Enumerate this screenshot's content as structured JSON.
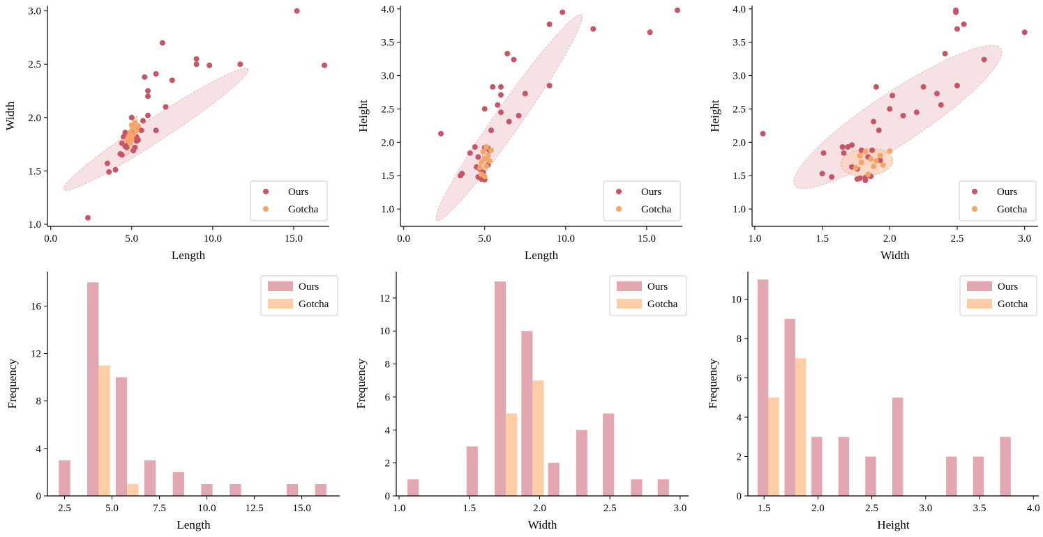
{
  "colors": {
    "ours": "#c85468",
    "gotcha": "#f7a468",
    "ours_bar": "#e3a7b1",
    "gotcha_bar": "#fdcda6",
    "ours_ellipse_fill": "#f5dde1",
    "ours_ellipse_edge": "#eab6bf",
    "gotcha_ellipse_fill": "#f9d1b8",
    "gotcha_ellipse_edge": "#f3a984"
  },
  "legend": {
    "ours": "Ours",
    "gotcha": "Gotcha"
  },
  "chart_data": [
    {
      "id": "scatter-length-width",
      "type": "scatter",
      "xlabel": "Length",
      "ylabel": "Width",
      "xlim": [
        -0.2,
        17.2
      ],
      "ylim": [
        0.98,
        3.05
      ],
      "xticks": [
        0,
        5,
        10,
        15
      ],
      "xtick_labels": [
        "0.0",
        "5.0",
        "10.0",
        "15.0"
      ],
      "yticks": [
        1.0,
        1.5,
        2.0,
        2.5,
        3.0
      ],
      "ytick_labels": [
        "1.0",
        "1.5",
        "2.0",
        "2.5",
        "3.0"
      ],
      "legend_position": "lower-right",
      "ellipses": [
        {
          "series": "ours",
          "cx": 6.5,
          "cy": 1.89,
          "p1": [
            5.7,
            0.56
          ],
          "p2": [
            -0.11,
            0.12
          ]
        },
        {
          "series": "gotcha",
          "cx": 5.0,
          "cy": 1.83,
          "p1": [
            0.35,
            0.17
          ],
          "p2": [
            -0.08,
            0.07
          ]
        }
      ],
      "series": [
        {
          "key": "ours",
          "name": "Ours",
          "points": [
            [
              2.3,
              1.06
            ],
            [
              3.5,
              1.57
            ],
            [
              3.6,
              1.49
            ],
            [
              4.0,
              1.51
            ],
            [
              4.3,
              1.66
            ],
            [
              4.4,
              1.76
            ],
            [
              4.5,
              1.82
            ],
            [
              4.6,
              1.86
            ],
            [
              4.7,
              1.72
            ],
            [
              4.8,
              1.76
            ],
            [
              5.0,
              1.87
            ],
            [
              5.1,
              1.69
            ],
            [
              5.2,
              1.72
            ],
            [
              5.3,
              1.82
            ],
            [
              5.4,
              1.79
            ],
            [
              5.6,
              1.88
            ],
            [
              5.7,
              1.97
            ],
            [
              5.8,
              2.38
            ],
            [
              6.0,
              2.25
            ],
            [
              6.0,
              2.2
            ],
            [
              6.0,
              2.02
            ],
            [
              6.5,
              2.41
            ],
            [
              6.5,
              1.88
            ],
            [
              6.9,
              2.7
            ],
            [
              7.1,
              2.1
            ],
            [
              7.5,
              2.35
            ],
            [
              9.0,
              2.55
            ],
            [
              9.0,
              2.5
            ],
            [
              9.8,
              2.49
            ],
            [
              11.7,
              2.5
            ],
            [
              15.2,
              3.0
            ],
            [
              16.9,
              2.49
            ],
            [
              4.9,
              1.78
            ],
            [
              5.0,
              2.0
            ],
            [
              4.4,
              1.65
            ],
            [
              4.6,
              1.73
            ],
            [
              5.3,
              1.78
            ],
            [
              4.8,
              1.84
            ]
          ]
        },
        {
          "key": "gotcha",
          "name": "Gotcha",
          "points": [
            [
              4.7,
              1.79
            ],
            [
              4.8,
              1.82
            ],
            [
              4.9,
              1.86
            ],
            [
              5.0,
              1.93
            ],
            [
              5.1,
              1.84
            ],
            [
              5.2,
              1.95
            ],
            [
              5.3,
              1.88
            ],
            [
              4.9,
              1.76
            ],
            [
              5.0,
              1.8
            ],
            [
              5.1,
              1.9
            ],
            [
              5.4,
              1.92
            ]
          ]
        }
      ]
    },
    {
      "id": "scatter-length-height",
      "type": "scatter",
      "xlabel": "Length",
      "ylabel": "Height",
      "xlim": [
        -0.2,
        17.2
      ],
      "ylim": [
        0.74,
        4.05
      ],
      "xticks": [
        0,
        5,
        10,
        15
      ],
      "xtick_labels": [
        "0.0",
        "5.0",
        "10.0",
        "15.0"
      ],
      "yticks": [
        1.0,
        1.5,
        2.0,
        2.5,
        3.0,
        3.5,
        4.0
      ],
      "ytick_labels": [
        "1.0",
        "1.5",
        "2.0",
        "2.5",
        "3.0",
        "3.5",
        "4.0"
      ],
      "legend_position": "lower-right",
      "ellipses": [
        {
          "series": "ours",
          "cx": 6.5,
          "cy": 2.37,
          "p1": [
            4.5,
            1.53
          ],
          "p2": [
            -0.35,
            0.22
          ]
        },
        {
          "series": "gotcha",
          "cx": 5.0,
          "cy": 1.7,
          "p1": [
            0.3,
            0.22
          ],
          "p2": [
            -0.12,
            0.12
          ]
        }
      ],
      "series": [
        {
          "key": "ours",
          "name": "Ours",
          "points": [
            [
              2.3,
              2.13
            ],
            [
              3.5,
              1.5
            ],
            [
              3.6,
              1.53
            ],
            [
              4.1,
              1.84
            ],
            [
              4.4,
              1.93
            ],
            [
              4.5,
              1.63
            ],
            [
              4.6,
              1.48
            ],
            [
              4.7,
              1.6
            ],
            [
              4.8,
              1.45
            ],
            [
              5.0,
              1.44
            ],
            [
              5.0,
              2.5
            ],
            [
              5.2,
              1.91
            ],
            [
              5.4,
              2.18
            ],
            [
              5.5,
              2.83
            ],
            [
              5.8,
              2.56
            ],
            [
              6.0,
              2.83
            ],
            [
              6.0,
              2.71
            ],
            [
              6.0,
              2.45
            ],
            [
              6.4,
              3.33
            ],
            [
              6.5,
              2.31
            ],
            [
              6.8,
              3.24
            ],
            [
              7.1,
              2.4
            ],
            [
              7.5,
              2.73
            ],
            [
              9.0,
              3.77
            ],
            [
              9.0,
              2.85
            ],
            [
              9.8,
              3.95
            ],
            [
              11.7,
              3.7
            ],
            [
              15.2,
              3.65
            ],
            [
              16.9,
              3.98
            ],
            [
              5.3,
              1.88
            ],
            [
              5.0,
              1.92
            ],
            [
              4.6,
              1.78
            ],
            [
              5.2,
              1.66
            ],
            [
              4.9,
              1.55
            ]
          ]
        },
        {
          "key": "gotcha",
          "name": "Gotcha",
          "points": [
            [
              4.7,
              1.62
            ],
            [
              4.8,
              1.7
            ],
            [
              4.9,
              1.86
            ],
            [
              5.0,
              1.75
            ],
            [
              5.1,
              1.64
            ],
            [
              5.2,
              1.8
            ],
            [
              5.3,
              1.72
            ],
            [
              4.8,
              1.52
            ],
            [
              5.0,
              1.49
            ],
            [
              5.4,
              1.88
            ],
            [
              5.1,
              1.93
            ]
          ]
        }
      ]
    },
    {
      "id": "scatter-width-height",
      "type": "scatter",
      "xlabel": "Width",
      "ylabel": "Height",
      "xlim": [
        0.98,
        3.1
      ],
      "ylim": [
        0.74,
        4.05
      ],
      "xticks": [
        1.0,
        1.5,
        2.0,
        2.5,
        3.0
      ],
      "xtick_labels": [
        "1.0",
        "1.5",
        "2.0",
        "2.5",
        "3.0"
      ],
      "yticks": [
        1.0,
        1.5,
        2.0,
        2.5,
        3.0,
        3.5,
        4.0
      ],
      "ytick_labels": [
        "1.0",
        "1.5",
        "2.0",
        "2.5",
        "3.0",
        "3.5",
        "4.0"
      ],
      "legend_position": "lower-right",
      "ellipses": [
        {
          "series": "ours",
          "cx": 2.06,
          "cy": 2.38,
          "p1": [
            0.74,
            1.06
          ],
          "p2": [
            -0.22,
            0.16
          ]
        },
        {
          "series": "gotcha",
          "cx": 1.83,
          "cy": 1.7,
          "p1": [
            0.19,
            0.06
          ],
          "p2": [
            -0.03,
            0.2
          ]
        }
      ],
      "series": [
        {
          "key": "ours",
          "name": "Ours",
          "points": [
            [
              1.06,
              2.13
            ],
            [
              1.5,
              1.53
            ],
            [
              1.51,
              1.84
            ],
            [
              1.57,
              1.48
            ],
            [
              1.65,
              1.93
            ],
            [
              1.66,
              1.84
            ],
            [
              1.69,
              1.93
            ],
            [
              1.72,
              1.96
            ],
            [
              1.72,
              1.63
            ],
            [
              1.76,
              1.6
            ],
            [
              1.76,
              1.45
            ],
            [
              1.78,
              1.46
            ],
            [
              1.79,
              1.88
            ],
            [
              1.82,
              1.47
            ],
            [
              1.82,
              1.43
            ],
            [
              1.86,
              1.49
            ],
            [
              1.87,
              1.88
            ],
            [
              1.88,
              2.31
            ],
            [
              1.9,
              2.83
            ],
            [
              1.92,
              2.18
            ],
            [
              2.0,
              2.5
            ],
            [
              2.02,
              2.7
            ],
            [
              2.1,
              2.4
            ],
            [
              2.2,
              2.45
            ],
            [
              2.25,
              2.83
            ],
            [
              2.35,
              2.73
            ],
            [
              2.38,
              2.56
            ],
            [
              2.41,
              3.33
            ],
            [
              2.49,
              3.98
            ],
            [
              2.49,
              3.95
            ],
            [
              2.5,
              3.7
            ],
            [
              2.5,
              2.85
            ],
            [
              2.55,
              3.77
            ],
            [
              2.7,
              3.24
            ],
            [
              3.0,
              3.65
            ],
            [
              1.84,
              1.78
            ],
            [
              1.93,
              1.73
            ]
          ]
        },
        {
          "key": "gotcha",
          "name": "Gotcha",
          "points": [
            [
              1.75,
              1.62
            ],
            [
              1.79,
              1.7
            ],
            [
              1.82,
              1.86
            ],
            [
              1.86,
              1.75
            ],
            [
              1.88,
              1.64
            ],
            [
              1.9,
              1.72
            ],
            [
              1.93,
              1.8
            ],
            [
              1.95,
              1.66
            ],
            [
              1.84,
              1.52
            ],
            [
              1.78,
              1.8
            ],
            [
              2.0,
              1.87
            ]
          ]
        }
      ]
    },
    {
      "id": "hist-length",
      "type": "bar",
      "xlabel": "Length",
      "ylabel": "Frequency",
      "xlim": [
        1.6,
        17.0
      ],
      "ylim": [
        0,
        18.9
      ],
      "xticks": [
        2.5,
        5.0,
        7.5,
        10.0,
        12.5,
        15.0
      ],
      "xtick_labels": [
        "2.5",
        "5.0",
        "7.5",
        "10.0",
        "12.5",
        "15.0"
      ],
      "yticks": [
        0,
        4,
        8,
        12,
        16
      ],
      "ytick_labels": [
        "0",
        "4",
        "8",
        "12",
        "16"
      ],
      "legend_position": "top-right",
      "series": [
        {
          "key": "ours",
          "name": "Ours",
          "bars": [
            [
              2.2,
              2.8,
              3
            ],
            [
              3.7,
              4.3,
              18
            ],
            [
              5.2,
              5.8,
              10
            ],
            [
              6.7,
              7.3,
              3
            ],
            [
              8.2,
              8.8,
              2
            ],
            [
              9.7,
              10.3,
              1
            ],
            [
              11.2,
              11.8,
              1
            ],
            [
              14.2,
              14.8,
              1
            ],
            [
              15.7,
              16.3,
              1
            ]
          ]
        },
        {
          "key": "gotcha",
          "name": "Gotcha",
          "bars": [
            [
              4.3,
              4.9,
              11
            ],
            [
              5.8,
              6.4,
              1
            ]
          ]
        }
      ]
    },
    {
      "id": "hist-width",
      "type": "bar",
      "xlabel": "Width",
      "ylabel": "Frequency",
      "xlim": [
        0.98,
        3.06
      ],
      "ylim": [
        0,
        13.6
      ],
      "xticks": [
        1.0,
        1.5,
        2.0,
        2.5,
        3.0
      ],
      "xtick_labels": [
        "1.0",
        "1.5",
        "2.0",
        "2.5",
        "3.0"
      ],
      "yticks": [
        0,
        2,
        4,
        6,
        8,
        10,
        12
      ],
      "ytick_labels": [
        "0",
        "2",
        "4",
        "6",
        "8",
        "10",
        "12"
      ],
      "legend_position": "top-right",
      "series": [
        {
          "key": "ours",
          "name": "Ours",
          "bars": [
            [
              1.06,
              1.14,
              1
            ],
            [
              1.48,
              1.56,
              3
            ],
            [
              1.68,
              1.76,
              13
            ],
            [
              1.87,
              1.95,
              10
            ],
            [
              2.06,
              2.14,
              2
            ],
            [
              2.26,
              2.34,
              4
            ],
            [
              2.45,
              2.53,
              5
            ],
            [
              2.65,
              2.73,
              1
            ],
            [
              2.84,
              2.92,
              1
            ]
          ]
        },
        {
          "key": "gotcha",
          "name": "Gotcha",
          "bars": [
            [
              1.76,
              1.84,
              5
            ],
            [
              1.95,
              2.03,
              7
            ]
          ]
        }
      ]
    },
    {
      "id": "hist-height",
      "type": "bar",
      "xlabel": "Height",
      "ylabel": "Frequency",
      "xlim": [
        1.35,
        4.05
      ],
      "ylim": [
        0,
        11.4
      ],
      "xticks": [
        1.5,
        2.0,
        2.5,
        3.0,
        3.5,
        4.0
      ],
      "xtick_labels": [
        "1.5",
        "2.0",
        "2.5",
        "3.0",
        "3.5",
        "4.0"
      ],
      "yticks": [
        0,
        2,
        4,
        6,
        8,
        10
      ],
      "ytick_labels": [
        "0",
        "2",
        "4",
        "6",
        "8",
        "10"
      ],
      "legend_position": "top-right",
      "series": [
        {
          "key": "ours",
          "name": "Ours",
          "bars": [
            [
              1.44,
              1.54,
              11
            ],
            [
              1.69,
              1.79,
              9
            ],
            [
              1.94,
              2.04,
              3
            ],
            [
              2.19,
              2.29,
              3
            ],
            [
              2.44,
              2.54,
              2
            ],
            [
              2.69,
              2.79,
              5
            ],
            [
              3.19,
              3.29,
              2
            ],
            [
              3.44,
              3.54,
              2
            ],
            [
              3.69,
              3.79,
              3
            ]
          ]
        },
        {
          "key": "gotcha",
          "name": "Gotcha",
          "bars": [
            [
              1.54,
              1.64,
              5
            ],
            [
              1.79,
              1.89,
              7
            ]
          ]
        }
      ]
    }
  ]
}
